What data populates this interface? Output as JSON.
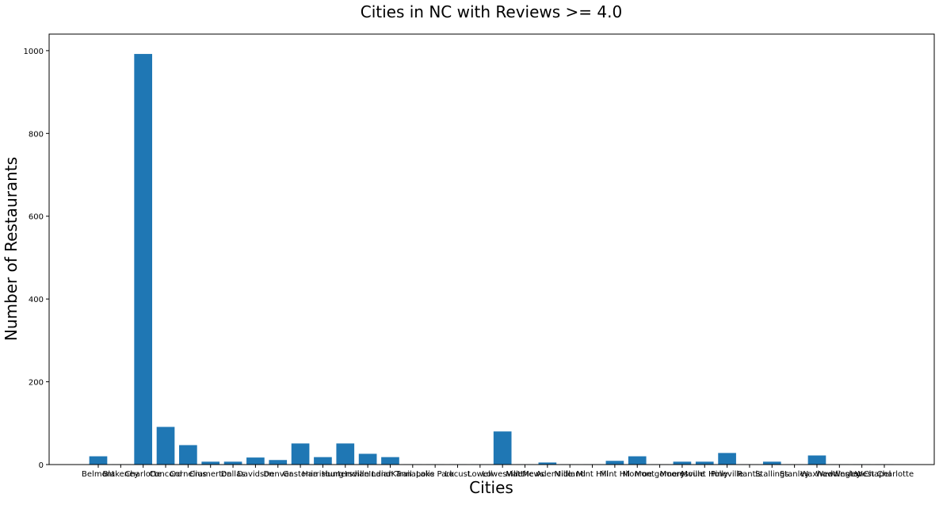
{
  "chart_data": {
    "type": "bar",
    "title": "Cities in NC with Reviews >= 4.0",
    "xlabel": "Cities",
    "ylabel": "Number of Restaurants",
    "ylim": [
      0,
      1040
    ],
    "yticks": [
      0,
      200,
      400,
      600,
      800,
      1000
    ],
    "grid": false,
    "color": "#1f77b4",
    "categories": [
      "Belmont",
      "Blakeney",
      "Charlotte",
      "Concord",
      "Cornelius",
      "Cramerton",
      "Dallas",
      "Davidson",
      "Denver",
      "Gastonia",
      "Harrisburg",
      "Huntersville",
      "Indian Land",
      "Indian Trail",
      "Kannapolis",
      "Lake Park",
      "Locust",
      "Lowell",
      "Lowesville",
      "Matthews",
      "Mc Adenville",
      "Midland",
      "Mint Hill",
      "Mint Hil",
      "Monroe",
      "Montgomery",
      "Mooresville",
      "Mount Holly",
      "Pineville",
      "Rantis",
      "Stallings",
      "Stanley",
      "Waxhaw",
      "Weddington",
      "Wesley Chapel",
      "West Charlotte"
    ],
    "tick_labels": [
      "Belmont",
      "Blakeney",
      "Charlotte",
      "Concord",
      "Cornelius",
      "Cramerton",
      "Dallas",
      "Davidson",
      "Denver",
      "Gastonia",
      "Harrisburg",
      "Huntersville",
      "Indian Land",
      "Indian Trail",
      "Kannapolis",
      "Lake Park",
      "Locust",
      "Lowell",
      "Lowesville",
      "Matthews",
      "Mc Adenville",
      "Midland",
      "Mint Hill",
      "Mint Hil",
      "Monroe",
      "Montgomery",
      "Mooresville",
      "Mount Holly",
      "Pineville",
      "Rantis",
      "Stallings",
      "Stanley",
      "Waxhaw",
      "Weddington",
      "Wesley Chapel",
      "West Charlotte"
    ],
    "values": [
      20,
      1,
      992,
      91,
      47,
      7,
      7,
      17,
      11,
      51,
      18,
      51,
      26,
      18,
      1,
      1,
      1,
      1,
      80,
      1,
      5,
      1,
      1,
      9,
      20,
      1,
      7,
      7,
      28,
      1,
      7,
      1,
      22,
      1,
      1,
      1
    ]
  }
}
